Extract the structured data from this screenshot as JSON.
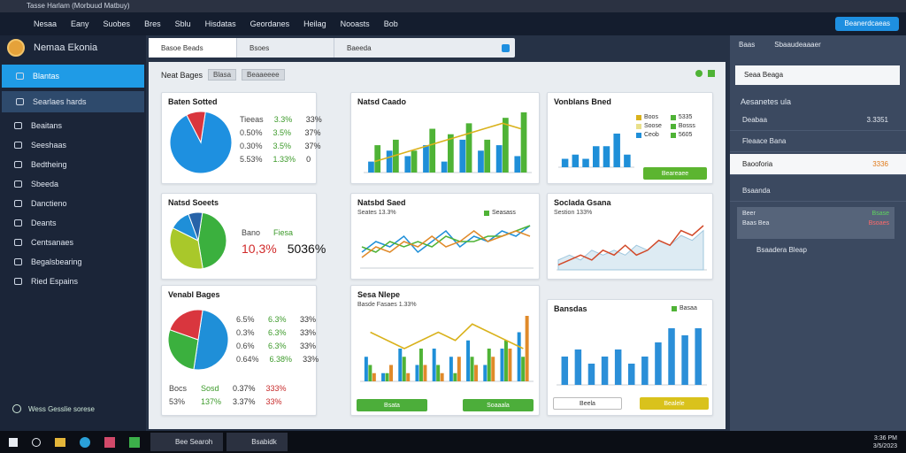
{
  "window": {
    "title": "Tasse Harlam (Morbuud Matbuy)"
  },
  "menu": [
    "Nesaa",
    "Eany",
    "Suobes",
    "Bres",
    "Sblu",
    "Hisdatas",
    "Geordanes",
    "Heilag",
    "Nooasts",
    "Bob"
  ],
  "menu_button": "Beanerdcaeas",
  "sidebar": {
    "user": "Nemaa Ekonia",
    "items": [
      "Blantas",
      "Searlaes hards",
      "Beaitans",
      "Seeshaas",
      "Bedtheing",
      "Sbeeda",
      "Danctieno",
      "Deants",
      "Centsanaes",
      "Begalsbearing",
      "Ried Espains"
    ],
    "footer": "Wess Gesslie sorese"
  },
  "search": {
    "field1": "Basoe Beads",
    "field2": "Bsoes",
    "field3": "Baeeda"
  },
  "content": {
    "heading": "Neat Bages",
    "tabs": [
      "Blasa",
      "Beaaeeee"
    ]
  },
  "cards": [
    {
      "title": "Baten Sotted",
      "chart": {
        "type": "pie",
        "values": [
          90,
          10
        ],
        "colors": [
          "#1e90e0",
          "#d9363e"
        ]
      },
      "rows": [
        [
          "Tieeas",
          "3.3%",
          "33%"
        ],
        [
          "0.50%",
          "3.5%",
          "37%"
        ],
        [
          "0.30%",
          "3.5%",
          "37%"
        ],
        [
          "5.53%",
          "1.33%",
          "0"
        ]
      ]
    },
    {
      "title": "Natsd Caado",
      "chart": {
        "type": "bars",
        "series": [
          {
            "color": "#1f8fd8",
            "values": [
              2,
              4,
              3,
              5,
              2,
              6,
              4,
              5,
              3
            ]
          },
          {
            "color": "#4fb336",
            "values": [
              5,
              6,
              4,
              8,
              7,
              9,
              6,
              10,
              11
            ]
          }
        ],
        "line": {
          "color": "#d9b21c",
          "values": [
            2,
            3,
            4,
            5,
            6,
            7,
            8,
            9,
            8
          ]
        }
      }
    },
    {
      "title": "Vonblans Bned",
      "legend": [
        {
          "label": "Boos",
          "color": "#d9b21c"
        },
        {
          "label": "5335",
          "color": "#4fb336"
        },
        {
          "label": "Soose",
          "color": "#e9e08a"
        },
        {
          "label": "Bosss",
          "color": "#4fb336"
        },
        {
          "label": "Ceob",
          "color": "#1f8fd8"
        },
        {
          "label": "5605",
          "color": "#4fb336"
        }
      ],
      "chart": {
        "type": "bars",
        "series": [
          {
            "color": "#1f8fd8",
            "values": [
              2,
              3,
              2,
              5,
              5,
              8,
              3
            ]
          }
        ]
      },
      "buttons": [
        {
          "label": "Beareaee",
          "color": "#5cb530"
        }
      ]
    },
    {
      "title": "Natsd Soeets",
      "chart": {
        "type": "pie",
        "values": [
          45,
          35,
          12,
          8
        ],
        "colors": [
          "#3bb03e",
          "#a9c82a",
          "#1f8fd8",
          "#2763a8"
        ]
      },
      "rows": [
        [
          "Bano",
          "Fiesa"
        ],
        [
          "10,3%",
          "5036%"
        ]
      ]
    },
    {
      "title": "Natsbd Saed",
      "subtitle": "Seates 13.3%",
      "legend": [
        {
          "label": "Seasass",
          "color": "#4fb336"
        }
      ],
      "chart": {
        "type": "lines",
        "series": [
          {
            "color": "#1f8fd8",
            "values": [
              3,
              5,
              4,
              6,
              3,
              5,
              7,
              4,
              6,
              5,
              7,
              6,
              8
            ]
          },
          {
            "color": "#4fb336",
            "values": [
              4,
              3,
              5,
              4,
              5,
              4,
              6,
              5,
              5,
              6,
              6,
              7,
              8
            ]
          },
          {
            "color": "#e08a2a",
            "values": [
              2,
              4,
              3,
              5,
              4,
              6,
              4,
              5,
              7,
              5,
              6,
              7,
              6
            ]
          }
        ]
      }
    },
    {
      "title": "Soclada Gsana",
      "subtitle": "Sestion 133%",
      "chart": {
        "type": "lines",
        "series": [
          {
            "color": "#9fc7de",
            "values": [
              2,
              3,
              2,
              4,
              3,
              4,
              3,
              5,
              4,
              6,
              5,
              7,
              6,
              8
            ],
            "area": true
          },
          {
            "color": "#d24a2a",
            "values": [
              1,
              2,
              3,
              2,
              4,
              3,
              5,
              3,
              4,
              6,
              5,
              8,
              7,
              9
            ]
          }
        ]
      }
    },
    {
      "title": "Venabl Bages",
      "chart": {
        "type": "pie",
        "values": [
          50,
          28,
          22
        ],
        "colors": [
          "#1f8fd8",
          "#3bb03e",
          "#d9363e"
        ]
      },
      "rows": [
        [
          "6.5%",
          "6.3%",
          "33%"
        ],
        [
          "0.3%",
          "6.3%",
          "33%"
        ],
        [
          "0.6%",
          "6.3%",
          "33%"
        ],
        [
          "0.64%",
          "6.38%",
          "33%"
        ]
      ],
      "footer_rows": [
        [
          "Bocs",
          "Sosd",
          "0.37%",
          "333%"
        ],
        [
          "53%",
          "137%",
          "3.37%",
          "33%"
        ]
      ]
    },
    {
      "title": "Sesa Nlepe",
      "subtitle": "Basde Fasaes 1.33%",
      "chart": {
        "type": "bars",
        "series": [
          {
            "color": "#1f8fd8",
            "values": [
              3,
              1,
              4,
              2,
              4,
              3,
              5,
              2,
              4,
              6
            ]
          },
          {
            "color": "#4fb336",
            "values": [
              2,
              1,
              3,
              4,
              2,
              1,
              3,
              4,
              5,
              3
            ]
          },
          {
            "color": "#e08a2a",
            "values": [
              1,
              2,
              1,
              2,
              1,
              3,
              2,
              3,
              4,
              8
            ]
          }
        ],
        "line": {
          "color": "#d9b21c",
          "values": [
            6,
            5,
            4,
            5,
            6,
            5,
            7,
            6,
            5,
            4
          ]
        }
      },
      "buttons": [
        {
          "label": "Bsata",
          "color": "#4cae3a"
        },
        {
          "label": "Soaaala",
          "color": "#4cae3a"
        }
      ]
    },
    {
      "title": "Bansdas",
      "legend": [
        {
          "label": "Basaa",
          "color": "#4fb336"
        }
      ],
      "chart": {
        "type": "bars",
        "series": [
          {
            "color": "#2b8fd8",
            "values": [
              4,
              5,
              3,
              4,
              5,
              3,
              4,
              6,
              8,
              7,
              8
            ]
          }
        ]
      },
      "buttons": [
        {
          "label": "Beela",
          "color": "#ffffff"
        },
        {
          "label": "Bealele",
          "color": "#d9c21c"
        }
      ]
    }
  ],
  "right_panel": {
    "tabs": [
      "Baas",
      "Sbaaudeaaaer"
    ],
    "search": "Seaa Beaga",
    "section": "Aesanetes ula",
    "rows": [
      {
        "label": "Deabaa",
        "value": "3.3351"
      },
      {
        "label": "Fleaace Bana"
      },
      {
        "label": "Baooforia",
        "value": "3336"
      },
      {
        "label": "Bsaanda"
      }
    ],
    "alert": {
      "title": "Beer",
      "subtitle": "Baas Bea",
      "value": "Bsase",
      "value2": "Bsoaes"
    },
    "footer": "Bsaadera Bleap"
  },
  "taskbar": {
    "apps": [
      "Bee Searoh",
      "Bsabidk"
    ],
    "time": "3:36 PM",
    "date": "3/5/2023"
  }
}
